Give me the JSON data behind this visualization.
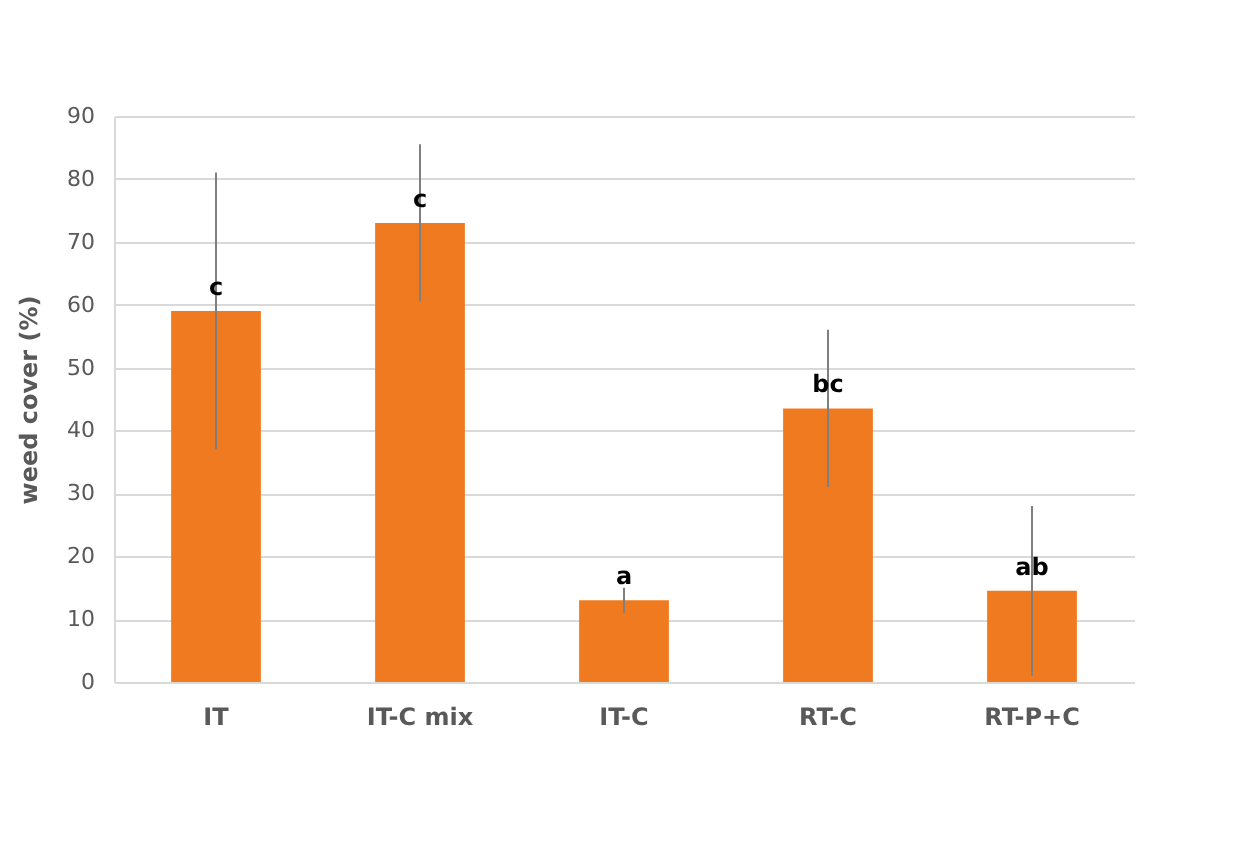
{
  "chart_data": {
    "type": "bar",
    "ylabel": "weed cover (%)",
    "categories": [
      "IT",
      "IT-C mix",
      "IT-C",
      "RT-C",
      "RT-P+C"
    ],
    "values": [
      59,
      73,
      13,
      43.5,
      14.5
    ],
    "errors": [
      22,
      12.5,
      2,
      12.5,
      13.5
    ],
    "color": "#f07a20",
    "ylim": [
      0,
      90
    ],
    "yticks": [
      0,
      10,
      20,
      30,
      40,
      50,
      60,
      70,
      80,
      90
    ],
    "grid": "y",
    "annotations": [
      {
        "text": "c",
        "x": "IT",
        "y": 59
      },
      {
        "text": "c",
        "x": "IT-C mix",
        "y": 73
      },
      {
        "text": "a",
        "x": "IT-C",
        "y": 13
      },
      {
        "text": "bc",
        "x": "RT-C",
        "y": 43.5
      },
      {
        "text": "ab",
        "x": "RT-P+C",
        "y": 14.5
      }
    ]
  }
}
